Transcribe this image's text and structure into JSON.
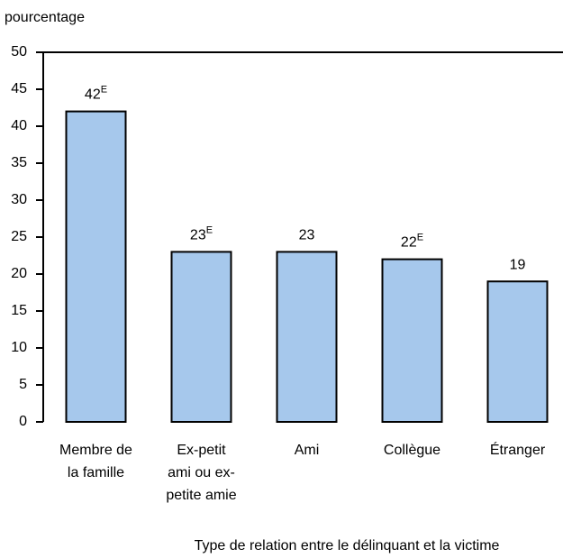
{
  "chart_data": {
    "type": "bar",
    "y_label": "pourcentage",
    "x_label": "Type de relation entre le délinquant et la victime",
    "categories": [
      "Membre de\nla famille",
      "Ex-petit\nami ou ex-\npetite amie",
      "Ami",
      "Collègue",
      "Étranger"
    ],
    "values": [
      42,
      23,
      23,
      22,
      19
    ],
    "value_labels": [
      "42E",
      "23E",
      "23",
      "22E",
      "19"
    ],
    "color": "#a6c8ec",
    "ylim": [
      0,
      50
    ],
    "yticks": [
      0,
      5,
      10,
      15,
      20,
      25,
      30,
      35,
      40,
      45,
      50
    ]
  }
}
